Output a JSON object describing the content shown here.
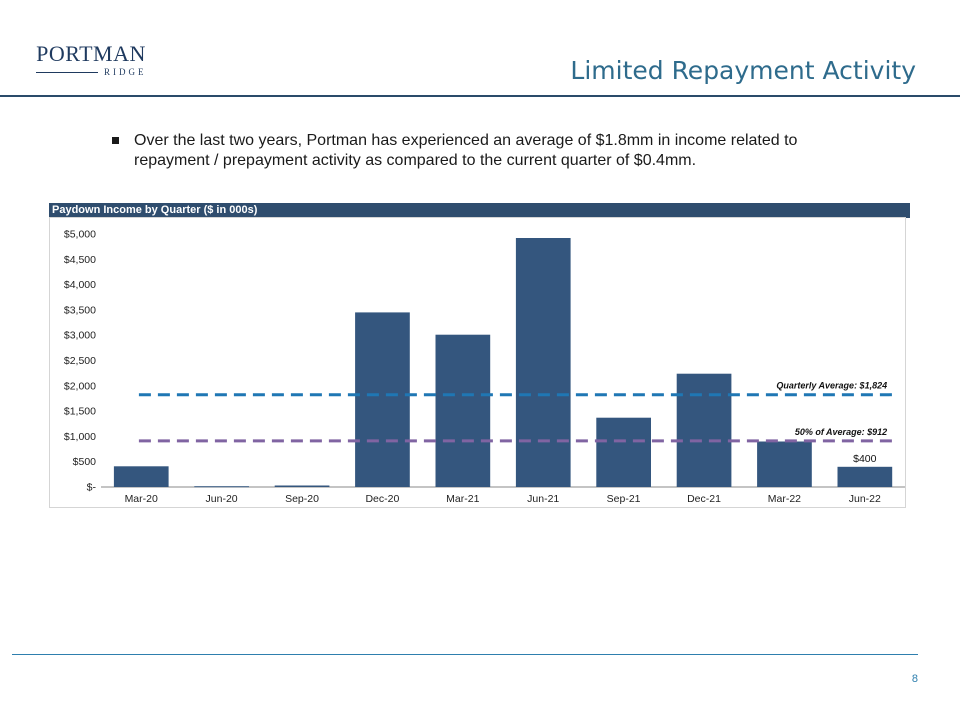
{
  "header": {
    "logo_name": "PORTMAN",
    "logo_sub": "RIDGE",
    "title": "Limited Repayment Activity"
  },
  "bullet": "Over the last two years, Portman has experienced an average of $1.8mm in income related to repayment / prepayment activity as compared to the current quarter of $0.4mm.",
  "panel": {
    "title": "Paydown Income by Quarter ($ in 000s)"
  },
  "chart_data": {
    "type": "bar",
    "categories": [
      "Mar-20",
      "Jun-20",
      "Sep-20",
      "Dec-20",
      "Mar-21",
      "Jun-21",
      "Sep-21",
      "Dec-21",
      "Mar-22",
      "Jun-22"
    ],
    "values": [
      410,
      15,
      30,
      3450,
      3010,
      4920,
      1370,
      2240,
      900,
      400
    ],
    "ylim": [
      0,
      5000
    ],
    "yticks": [
      0,
      500,
      1000,
      1500,
      2000,
      2500,
      3000,
      3500,
      4000,
      4500,
      5000
    ],
    "ytick_labels": [
      "$-",
      "$500",
      "$1,000",
      "$1,500",
      "$2,000",
      "$2,500",
      "$3,000",
      "$3,500",
      "$4,000",
      "$4,500",
      "$5,000"
    ],
    "bar_color": "#34567e",
    "reference_lines": [
      {
        "label": "Quarterly Average: $1,824",
        "value": 1824,
        "color": "#1f77b4"
      },
      {
        "label": "50% of Average: $912",
        "value": 912,
        "color": "#8064a2"
      }
    ],
    "data_labels": [
      {
        "index": 9,
        "text": "$400"
      }
    ]
  },
  "footer": {
    "page_number": "8"
  }
}
